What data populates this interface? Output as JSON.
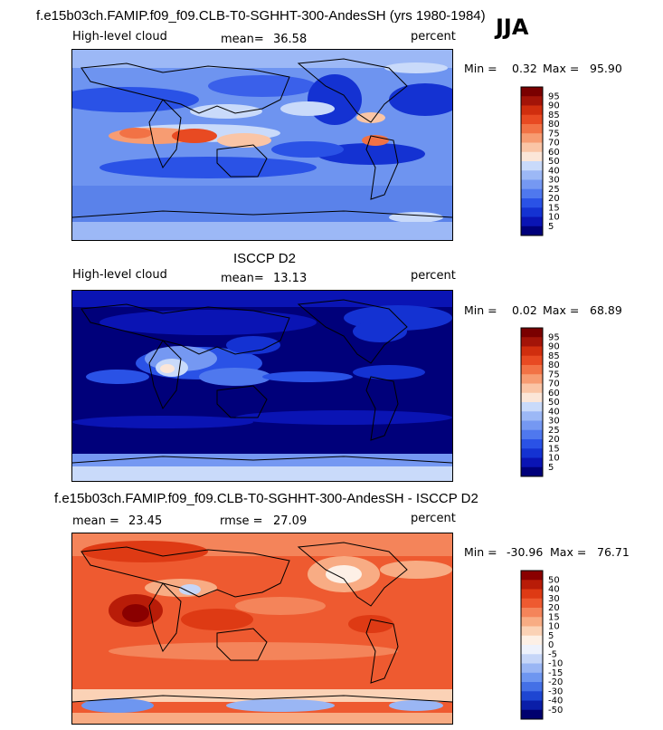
{
  "season": "JJA",
  "panels": [
    {
      "title": "f.e15b03ch.FAMIP.f09_f09.CLB-T0-SGHHT-300-AndesSH (yrs 1980-1984)",
      "left_label": "High-level cloud",
      "mid_label": "mean=",
      "mid_value": "36.58",
      "right_label": "percent",
      "min_label": "Min =",
      "min_value": "0.32",
      "max_label": "Max =",
      "max_value": "95.90",
      "colorbar_labels": [
        "95",
        "90",
        "85",
        "80",
        "75",
        "70",
        "60",
        "50",
        "40",
        "30",
        "25",
        "20",
        "15",
        "10",
        "5"
      ]
    },
    {
      "title": "ISCCP D2",
      "left_label": "High-level cloud",
      "mid_label": "mean=",
      "mid_value": "13.13",
      "right_label": "percent",
      "min_label": "Min =",
      "min_value": "0.02",
      "max_label": "Max =",
      "max_value": "68.89",
      "colorbar_labels": [
        "95",
        "90",
        "85",
        "80",
        "75",
        "70",
        "60",
        "50",
        "40",
        "30",
        "25",
        "20",
        "15",
        "10",
        "5"
      ]
    },
    {
      "title": "f.e15b03ch.FAMIP.f09_f09.CLB-T0-SGHHT-300-AndesSH - ISCCP D2",
      "left_label": "mean =",
      "left_value": "23.45",
      "mid_label": "rmse =",
      "mid_value": "27.09",
      "right_label": "percent",
      "min_label": "Min =",
      "min_value": "-30.96",
      "max_label": "Max =",
      "max_value": "76.71",
      "colorbar_labels": [
        "50",
        "40",
        "30",
        "20",
        "15",
        "10",
        "5",
        "0",
        "-5",
        "-10",
        "-15",
        "-20",
        "-30",
        "-40",
        "-50"
      ]
    }
  ],
  "colors": {
    "abs_scale": [
      "#00007a",
      "#0a14b4",
      "#1432d2",
      "#2a52e6",
      "#4f78ee",
      "#7598f2",
      "#9cb8f6",
      "#c9dafa",
      "#fbe6d8",
      "#fac5a6",
      "#f79c72",
      "#f27245",
      "#e84a22",
      "#d02e0e",
      "#a31408",
      "#7a0000"
    ],
    "diff_scale": [
      "#00006e",
      "#0a1ea8",
      "#1e46d2",
      "#4470e6",
      "#6e96f0",
      "#9ab6f4",
      "#c6d6f8",
      "#eef2fc",
      "#fdf0e6",
      "#fbd2b6",
      "#f8ac84",
      "#f4845a",
      "#ee5a30",
      "#de3a14",
      "#b81c08",
      "#8a0000"
    ]
  },
  "chart_data": [
    {
      "type": "heatmap",
      "title": "f.e15b03ch.FAMIP.f09_f09.CLB-T0-SGHHT-300-AndesSH (yrs 1980-1984)",
      "variable": "High-level cloud",
      "units": "percent",
      "mean": 36.58,
      "min": 0.32,
      "max": 95.9,
      "contour_levels": [
        5,
        10,
        15,
        20,
        25,
        30,
        40,
        50,
        60,
        70,
        75,
        80,
        85,
        90,
        95
      ]
    },
    {
      "type": "heatmap",
      "title": "ISCCP D2",
      "variable": "High-level cloud",
      "units": "percent",
      "mean": 13.13,
      "min": 0.02,
      "max": 68.89,
      "contour_levels": [
        5,
        10,
        15,
        20,
        25,
        30,
        40,
        50,
        60,
        70,
        75,
        80,
        85,
        90,
        95
      ]
    },
    {
      "type": "heatmap",
      "title": "f.e15b03ch.FAMIP.f09_f09.CLB-T0-SGHHT-300-AndesSH - ISCCP D2",
      "units": "percent",
      "mean": 23.45,
      "rmse": 27.09,
      "min": -30.96,
      "max": 76.71,
      "contour_levels": [
        -50,
        -40,
        -30,
        -20,
        -15,
        -10,
        -5,
        0,
        5,
        10,
        15,
        20,
        30,
        40,
        50
      ]
    }
  ]
}
